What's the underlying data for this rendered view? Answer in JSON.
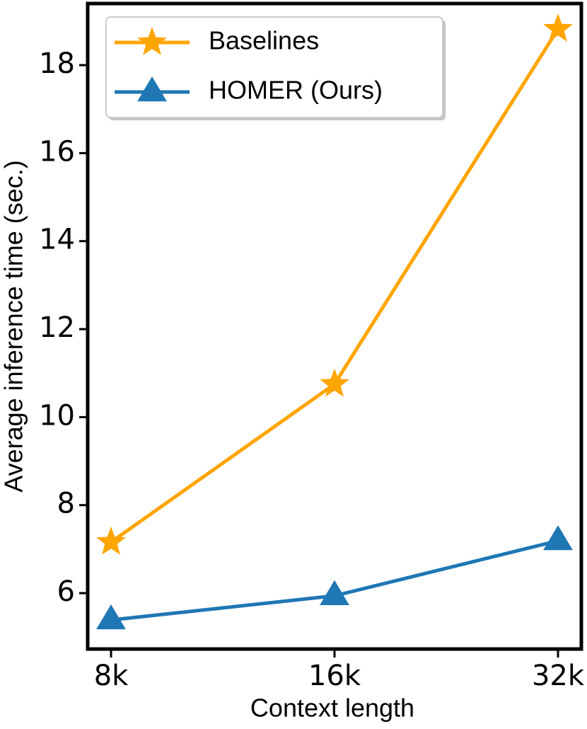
{
  "chart_data": {
    "type": "line",
    "x_label": "Context length",
    "y_label": "Average inference time (sec.)",
    "categories": [
      "8k",
      "16k",
      "32k"
    ],
    "series": [
      {
        "name": "Baselines",
        "color": "#ffa500",
        "marker": "star",
        "values": [
          7.16,
          10.75,
          18.82
        ]
      },
      {
        "name": "HOMER (Ours)",
        "color": "#1f77b4",
        "marker": "triangle",
        "values": [
          5.39,
          5.94,
          7.19
        ]
      }
    ],
    "ylim": [
      4.73,
      19.4
    ],
    "yticks": [
      6,
      8,
      10,
      12,
      14,
      16,
      18
    ],
    "grid": false,
    "legend": "upper left"
  }
}
